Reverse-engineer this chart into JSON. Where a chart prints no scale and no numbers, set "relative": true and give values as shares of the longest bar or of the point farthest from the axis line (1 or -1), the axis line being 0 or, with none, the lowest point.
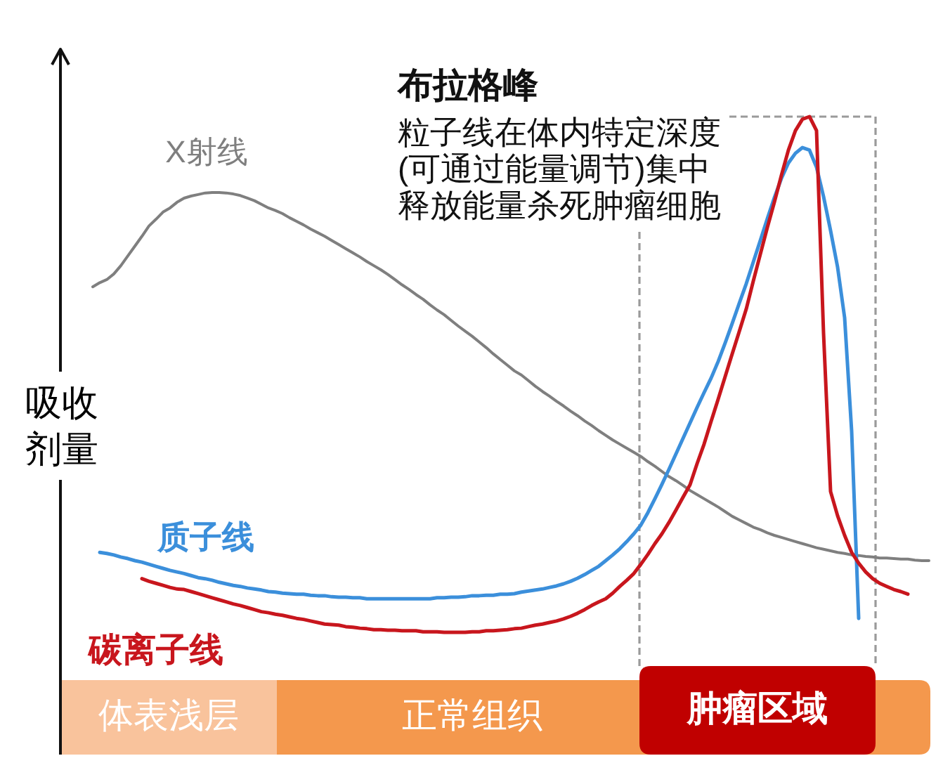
{
  "chart_data": {
    "type": "line",
    "relative": true,
    "ylabel": "吸收剂量",
    "categories": [
      null,
      null,
      null,
      null,
      null,
      null,
      null,
      null,
      null,
      null,
      null,
      null,
      null,
      null,
      null,
      null,
      null,
      null,
      null,
      null,
      null,
      null,
      null,
      null,
      null,
      null,
      null,
      null,
      null,
      null,
      null,
      null,
      null,
      null,
      null,
      null,
      null,
      null,
      null,
      null,
      null,
      null,
      null,
      null,
      null,
      null,
      null,
      null,
      null,
      null,
      null,
      null,
      null,
      null,
      null,
      null,
      null,
      null,
      null,
      null,
      null,
      null,
      null,
      null,
      null,
      null,
      null,
      null,
      null,
      null,
      null,
      null,
      null,
      null,
      null,
      null,
      null,
      null,
      null,
      null,
      null,
      null,
      null,
      null,
      null,
      null,
      null,
      null,
      null,
      null,
      null,
      null,
      null,
      null,
      null,
      null,
      null,
      null,
      null,
      null,
      null,
      null,
      null,
      null,
      null,
      null,
      null,
      null,
      null,
      null,
      null,
      null,
      null,
      null,
      null,
      null,
      null,
      null,
      null,
      null
    ],
    "series": [
      {
        "name": "X射线",
        "color": "#7f7f7f",
        "values": [
          0.67,
          0.678,
          0.684,
          0.695,
          0.711,
          0.73,
          0.749,
          0.768,
          0.788,
          0.801,
          0.815,
          0.823,
          0.834,
          0.842,
          0.846,
          0.849,
          0.852,
          0.853,
          0.853,
          0.852,
          0.85,
          0.847,
          0.842,
          0.837,
          0.83,
          0.823,
          0.818,
          0.812,
          0.804,
          0.797,
          0.79,
          0.782,
          0.775,
          0.768,
          0.76,
          0.752,
          0.744,
          0.736,
          0.728,
          0.719,
          0.711,
          0.703,
          0.694,
          0.684,
          0.674,
          0.665,
          0.655,
          0.646,
          0.635,
          0.625,
          0.616,
          0.605,
          0.594,
          0.584,
          0.574,
          0.563,
          0.552,
          0.54,
          0.529,
          0.518,
          0.507,
          0.499,
          0.488,
          0.477,
          0.467,
          0.458,
          0.448,
          0.439,
          0.429,
          0.42,
          0.41,
          0.401,
          0.391,
          0.382,
          0.373,
          0.365,
          0.357,
          0.349,
          0.341,
          0.331,
          0.322,
          0.312,
          0.302,
          0.294,
          0.285,
          0.275,
          0.267,
          0.259,
          0.251,
          0.243,
          0.234,
          0.225,
          0.218,
          0.211,
          0.204,
          0.199,
          0.193,
          0.188,
          0.184,
          0.18,
          0.176,
          0.172,
          0.168,
          0.164,
          0.161,
          0.158,
          0.155,
          0.153,
          0.15,
          0.149,
          0.147,
          0.146,
          0.144,
          0.144,
          0.143,
          0.142,
          0.142,
          0.14,
          0.139,
          0.139
        ]
      },
      {
        "name": "质子线",
        "color": "#3b8fdb",
        "values": [
          null,
          0.155,
          0.153,
          0.15,
          0.146,
          0.143,
          0.139,
          0.136,
          0.132,
          0.128,
          0.124,
          0.12,
          0.117,
          0.114,
          0.11,
          0.106,
          0.104,
          0.101,
          0.097,
          0.094,
          0.091,
          0.089,
          0.086,
          0.084,
          0.082,
          0.079,
          0.078,
          0.076,
          0.075,
          0.074,
          0.074,
          0.072,
          0.071,
          0.071,
          0.069,
          0.068,
          0.068,
          0.067,
          0.067,
          0.065,
          0.065,
          0.065,
          0.065,
          0.065,
          0.065,
          0.065,
          0.065,
          0.065,
          0.065,
          0.067,
          0.067,
          0.068,
          0.068,
          0.069,
          0.071,
          0.071,
          0.072,
          0.072,
          0.074,
          0.074,
          0.075,
          0.078,
          0.08,
          0.082,
          0.084,
          0.087,
          0.09,
          0.094,
          0.099,
          0.105,
          0.112,
          0.12,
          0.128,
          0.139,
          0.15,
          0.162,
          0.176,
          0.191,
          0.208,
          0.232,
          0.259,
          0.287,
          0.316,
          0.346,
          0.376,
          0.406,
          0.436,
          0.465,
          0.493,
          0.525,
          0.561,
          0.599,
          0.638,
          0.676,
          0.718,
          0.76,
          0.802,
          0.843,
          0.88,
          0.91,
          0.929,
          0.94,
          0.935,
          0.902,
          0.845,
          0.779,
          0.708,
          0.61,
          0.39,
          0.027,
          null,
          null,
          null,
          null,
          null,
          null,
          null,
          null,
          null,
          null
        ]
      },
      {
        "name": "碳离子线",
        "color": "#c8161d",
        "values": [
          null,
          null,
          null,
          null,
          null,
          null,
          null,
          0.104,
          0.099,
          0.095,
          0.091,
          0.087,
          0.084,
          0.083,
          0.079,
          0.075,
          0.071,
          0.067,
          0.063,
          0.059,
          0.055,
          0.052,
          0.048,
          0.044,
          0.04,
          0.038,
          0.035,
          0.033,
          0.03,
          0.027,
          0.025,
          0.022,
          0.019,
          0.016,
          0.015,
          0.014,
          0.011,
          0.01,
          0.008,
          0.007,
          0.005,
          0.005,
          0.004,
          0.004,
          0.003,
          0.003,
          0.003,
          0.001,
          0.001,
          0.001,
          0,
          0,
          0,
          0,
          0.001,
          0.001,
          0.003,
          0.003,
          0.004,
          0.005,
          0.007,
          0.008,
          0.011,
          0.014,
          0.016,
          0.019,
          0.022,
          0.026,
          0.031,
          0.037,
          0.044,
          0.052,
          0.059,
          0.065,
          0.076,
          0.089,
          0.101,
          0.114,
          0.132,
          0.151,
          0.172,
          0.191,
          0.213,
          0.237,
          0.262,
          0.286,
          0.327,
          0.365,
          0.409,
          0.452,
          0.496,
          0.54,
          0.583,
          0.627,
          0.681,
          0.733,
          0.785,
          0.834,
          0.886,
          0.935,
          0.973,
          0.995,
          1,
          0.973,
          0.58,
          0.273,
          0.226,
          0.188,
          0.155,
          0.134,
          0.117,
          0.104,
          0.095,
          0.089,
          0.083,
          0.079,
          0.074,
          null,
          null,
          null
        ]
      }
    ],
    "annotations": [
      "布拉格峰",
      "粒子线在体内特定深度(可通过能量调节)集中释放能量杀死肿瘤细胞",
      "体表浅层",
      "正常组织",
      "肿瘤区域"
    ]
  }
}
